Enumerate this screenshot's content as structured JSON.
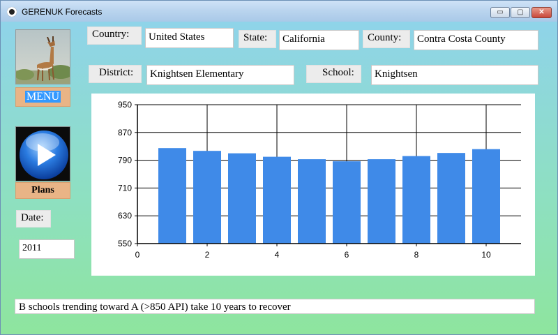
{
  "window": {
    "title": "GERENUK Forecasts",
    "controls": {
      "minimize": "▭",
      "maximize": "▢",
      "close": "✕"
    }
  },
  "filters": {
    "country_label": "Country:",
    "country_value": "United States",
    "state_label": "State:",
    "state_value": "California",
    "county_label": "County:",
    "county_value": "Contra Costa County",
    "district_label": "District:",
    "district_value": "Knightsen Elementary",
    "school_label": "School:",
    "school_value": "Knightsen"
  },
  "sidebar": {
    "logo_icon": "gerenuk-photo",
    "menu_label": "MENU",
    "play_icon": "play-icon",
    "plans_label": "Plans",
    "date_label": "Date:",
    "date_value": "2011"
  },
  "chart_data": {
    "type": "bar",
    "x": [
      1,
      2,
      3,
      4,
      5,
      6,
      7,
      8,
      9,
      10
    ],
    "values": [
      825,
      817,
      810,
      800,
      793,
      787,
      793,
      802,
      811,
      822
    ],
    "xlim": [
      0,
      11
    ],
    "ylim": [
      550,
      950
    ],
    "xticks": [
      0,
      2,
      4,
      6,
      8,
      10
    ],
    "yticks": [
      550,
      630,
      710,
      790,
      870,
      950
    ],
    "grid": true,
    "bar_color": "#3f8ae8",
    "title": "",
    "xlabel": "",
    "ylabel": ""
  },
  "status": {
    "message": "B schools trending toward A (>850 API) take 10 years to recover"
  }
}
